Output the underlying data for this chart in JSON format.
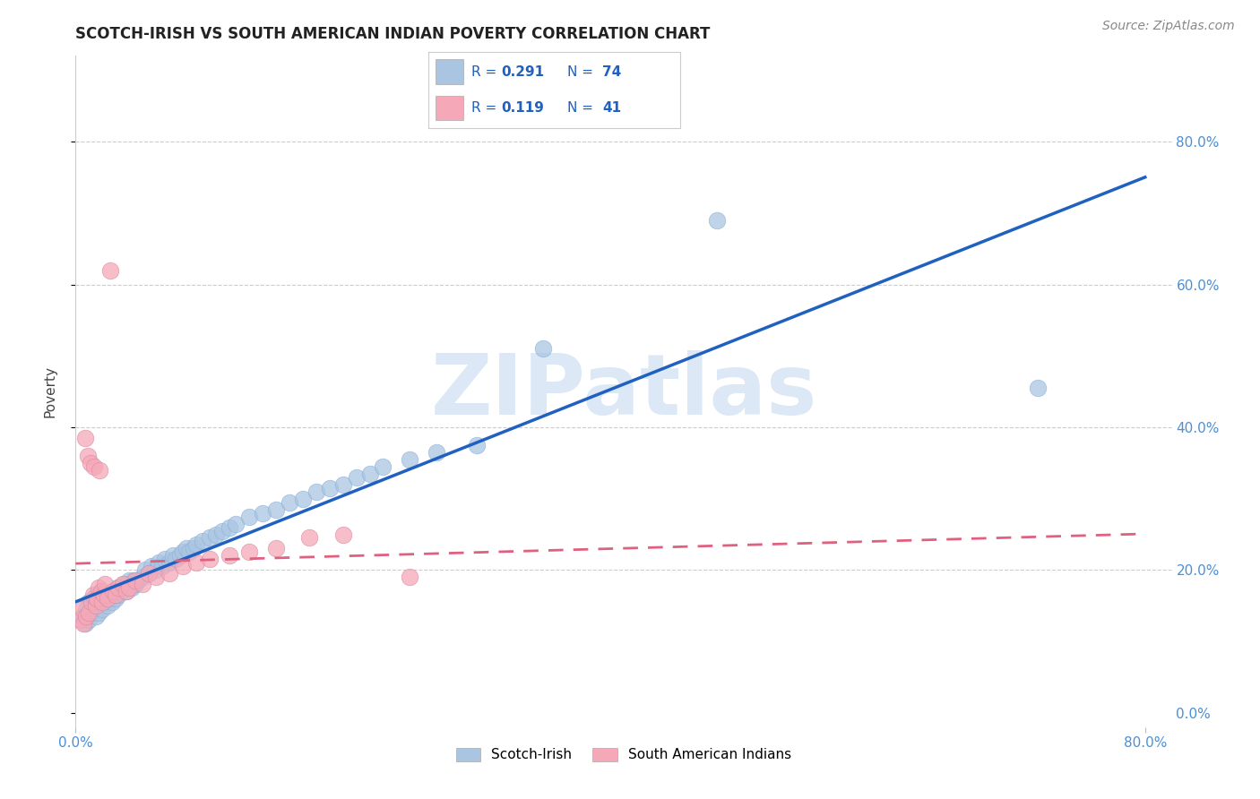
{
  "title": "SCOTCH-IRISH VS SOUTH AMERICAN INDIAN POVERTY CORRELATION CHART",
  "source": "Source: ZipAtlas.com",
  "ylabel": "Poverty",
  "xlim": [
    0.0,
    0.82
  ],
  "ylim": [
    -0.02,
    0.92
  ],
  "yticks": [
    0.0,
    0.2,
    0.4,
    0.6,
    0.8
  ],
  "xtick_positions": [
    0.0,
    0.8
  ],
  "xtick_labels": [
    "0.0%",
    "80.0%"
  ],
  "ytick_labels_right": [
    "0.0%",
    "20.0%",
    "40.0%",
    "60.0%",
    "80.0%"
  ],
  "series1_name": "Scotch-Irish",
  "series2_name": "South American Indians",
  "series1_color": "#aac5e2",
  "series2_color": "#f5a8b8",
  "series1_line_color": "#2060c0",
  "series2_line_color": "#e06080",
  "series1_R": "0.291",
  "series1_N": "74",
  "series2_R": "0.119",
  "series2_N": "41",
  "legend_color": "#2060c0",
  "watermark_text": "ZIPatlas",
  "watermark_color": "#dce8f5",
  "title_fontsize": 12,
  "background_color": "#ffffff",
  "grid_color": "#cccccc",
  "scotch_irish_x": [
    0.005,
    0.007,
    0.008,
    0.01,
    0.01,
    0.012,
    0.013,
    0.015,
    0.015,
    0.016,
    0.017,
    0.018,
    0.019,
    0.02,
    0.021,
    0.022,
    0.023,
    0.024,
    0.025,
    0.026,
    0.027,
    0.028,
    0.03,
    0.031,
    0.032,
    0.033,
    0.035,
    0.036,
    0.038,
    0.04,
    0.042,
    0.043,
    0.045,
    0.047,
    0.05,
    0.052,
    0.055,
    0.057,
    0.06,
    0.062,
    0.065,
    0.067,
    0.07,
    0.073,
    0.075,
    0.078,
    0.08,
    0.083,
    0.085,
    0.088,
    0.09,
    0.095,
    0.1,
    0.105,
    0.11,
    0.115,
    0.12,
    0.13,
    0.14,
    0.15,
    0.16,
    0.17,
    0.18,
    0.19,
    0.2,
    0.21,
    0.22,
    0.23,
    0.25,
    0.27,
    0.3,
    0.35,
    0.48,
    0.72
  ],
  "scotch_irish_y": [
    0.135,
    0.125,
    0.145,
    0.13,
    0.155,
    0.14,
    0.16,
    0.135,
    0.15,
    0.165,
    0.14,
    0.155,
    0.17,
    0.145,
    0.16,
    0.155,
    0.165,
    0.15,
    0.165,
    0.16,
    0.155,
    0.17,
    0.16,
    0.175,
    0.165,
    0.17,
    0.175,
    0.18,
    0.17,
    0.185,
    0.175,
    0.185,
    0.18,
    0.185,
    0.19,
    0.2,
    0.195,
    0.205,
    0.2,
    0.21,
    0.205,
    0.215,
    0.21,
    0.22,
    0.215,
    0.22,
    0.225,
    0.23,
    0.225,
    0.23,
    0.235,
    0.24,
    0.245,
    0.25,
    0.255,
    0.26,
    0.265,
    0.275,
    0.28,
    0.285,
    0.295,
    0.3,
    0.31,
    0.315,
    0.32,
    0.33,
    0.335,
    0.345,
    0.355,
    0.365,
    0.375,
    0.51,
    0.69,
    0.455
  ],
  "s_american_x": [
    0.003,
    0.005,
    0.006,
    0.007,
    0.008,
    0.009,
    0.01,
    0.011,
    0.012,
    0.013,
    0.014,
    0.015,
    0.016,
    0.017,
    0.018,
    0.019,
    0.02,
    0.021,
    0.022,
    0.024,
    0.026,
    0.028,
    0.03,
    0.032,
    0.035,
    0.038,
    0.04,
    0.045,
    0.05,
    0.055,
    0.06,
    0.07,
    0.08,
    0.09,
    0.1,
    0.115,
    0.13,
    0.15,
    0.175,
    0.2,
    0.25
  ],
  "s_american_y": [
    0.13,
    0.145,
    0.125,
    0.385,
    0.135,
    0.36,
    0.14,
    0.35,
    0.155,
    0.165,
    0.345,
    0.15,
    0.16,
    0.175,
    0.34,
    0.17,
    0.155,
    0.165,
    0.18,
    0.16,
    0.62,
    0.17,
    0.165,
    0.175,
    0.18,
    0.17,
    0.175,
    0.185,
    0.18,
    0.195,
    0.19,
    0.195,
    0.205,
    0.21,
    0.215,
    0.22,
    0.225,
    0.23,
    0.245,
    0.25,
    0.19
  ]
}
